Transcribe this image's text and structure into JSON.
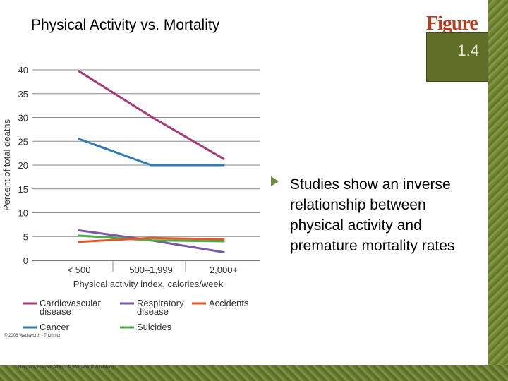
{
  "title": "Physical Activity vs. Mortality",
  "figure": {
    "word": "Figure",
    "number": "1.4"
  },
  "bullet_text": "Studies show an inverse relationship between physical activity and premature mortality rates",
  "copyright": "© 2006 Wadsworth - Thomson",
  "publisher": "Hoeger & Hoeger, Alt Edit © Wadsworth Publishing",
  "colors": {
    "cardio": "#a63a78",
    "cancer": "#2f7bb5",
    "respiratory": "#7a5aa8",
    "suicides": "#48b04a",
    "accidents": "#e0582a",
    "axis": "#4a4a4a",
    "background_strip": "#6d7f2f"
  },
  "chart_data": {
    "type": "line",
    "title": "",
    "xlabel": "Physical activity index, calories/week",
    "ylabel": "Percent of total deaths",
    "categories": [
      "< 500",
      "500–1,999",
      "2,000+"
    ],
    "ylim": [
      0,
      40
    ],
    "yticks": [
      0,
      5,
      10,
      15,
      20,
      25,
      30,
      35,
      40
    ],
    "grid": "horizontal",
    "series": [
      {
        "key": "cardio",
        "name": "Cardiovascular disease",
        "legend_lines": [
          "Cardiovascular",
          "disease"
        ],
        "values": [
          39.7,
          30.2,
          21.3
        ]
      },
      {
        "key": "cancer",
        "name": "Cancer",
        "legend_lines": [
          "Cancer"
        ],
        "values": [
          25.5,
          20.0,
          20.0
        ]
      },
      {
        "key": "respiratory",
        "name": "Respiratory disease",
        "legend_lines": [
          "Respiratory",
          "disease"
        ],
        "values": [
          6.3,
          4.2,
          1.7
        ]
      },
      {
        "key": "suicides",
        "name": "Suicides",
        "legend_lines": [
          "Suicides"
        ],
        "values": [
          5.2,
          4.2,
          4.0
        ]
      },
      {
        "key": "accidents",
        "name": "Accidents",
        "legend_lines": [
          "Accidents"
        ],
        "values": [
          3.9,
          4.7,
          4.4
        ]
      }
    ],
    "legend_position": "bottom"
  }
}
